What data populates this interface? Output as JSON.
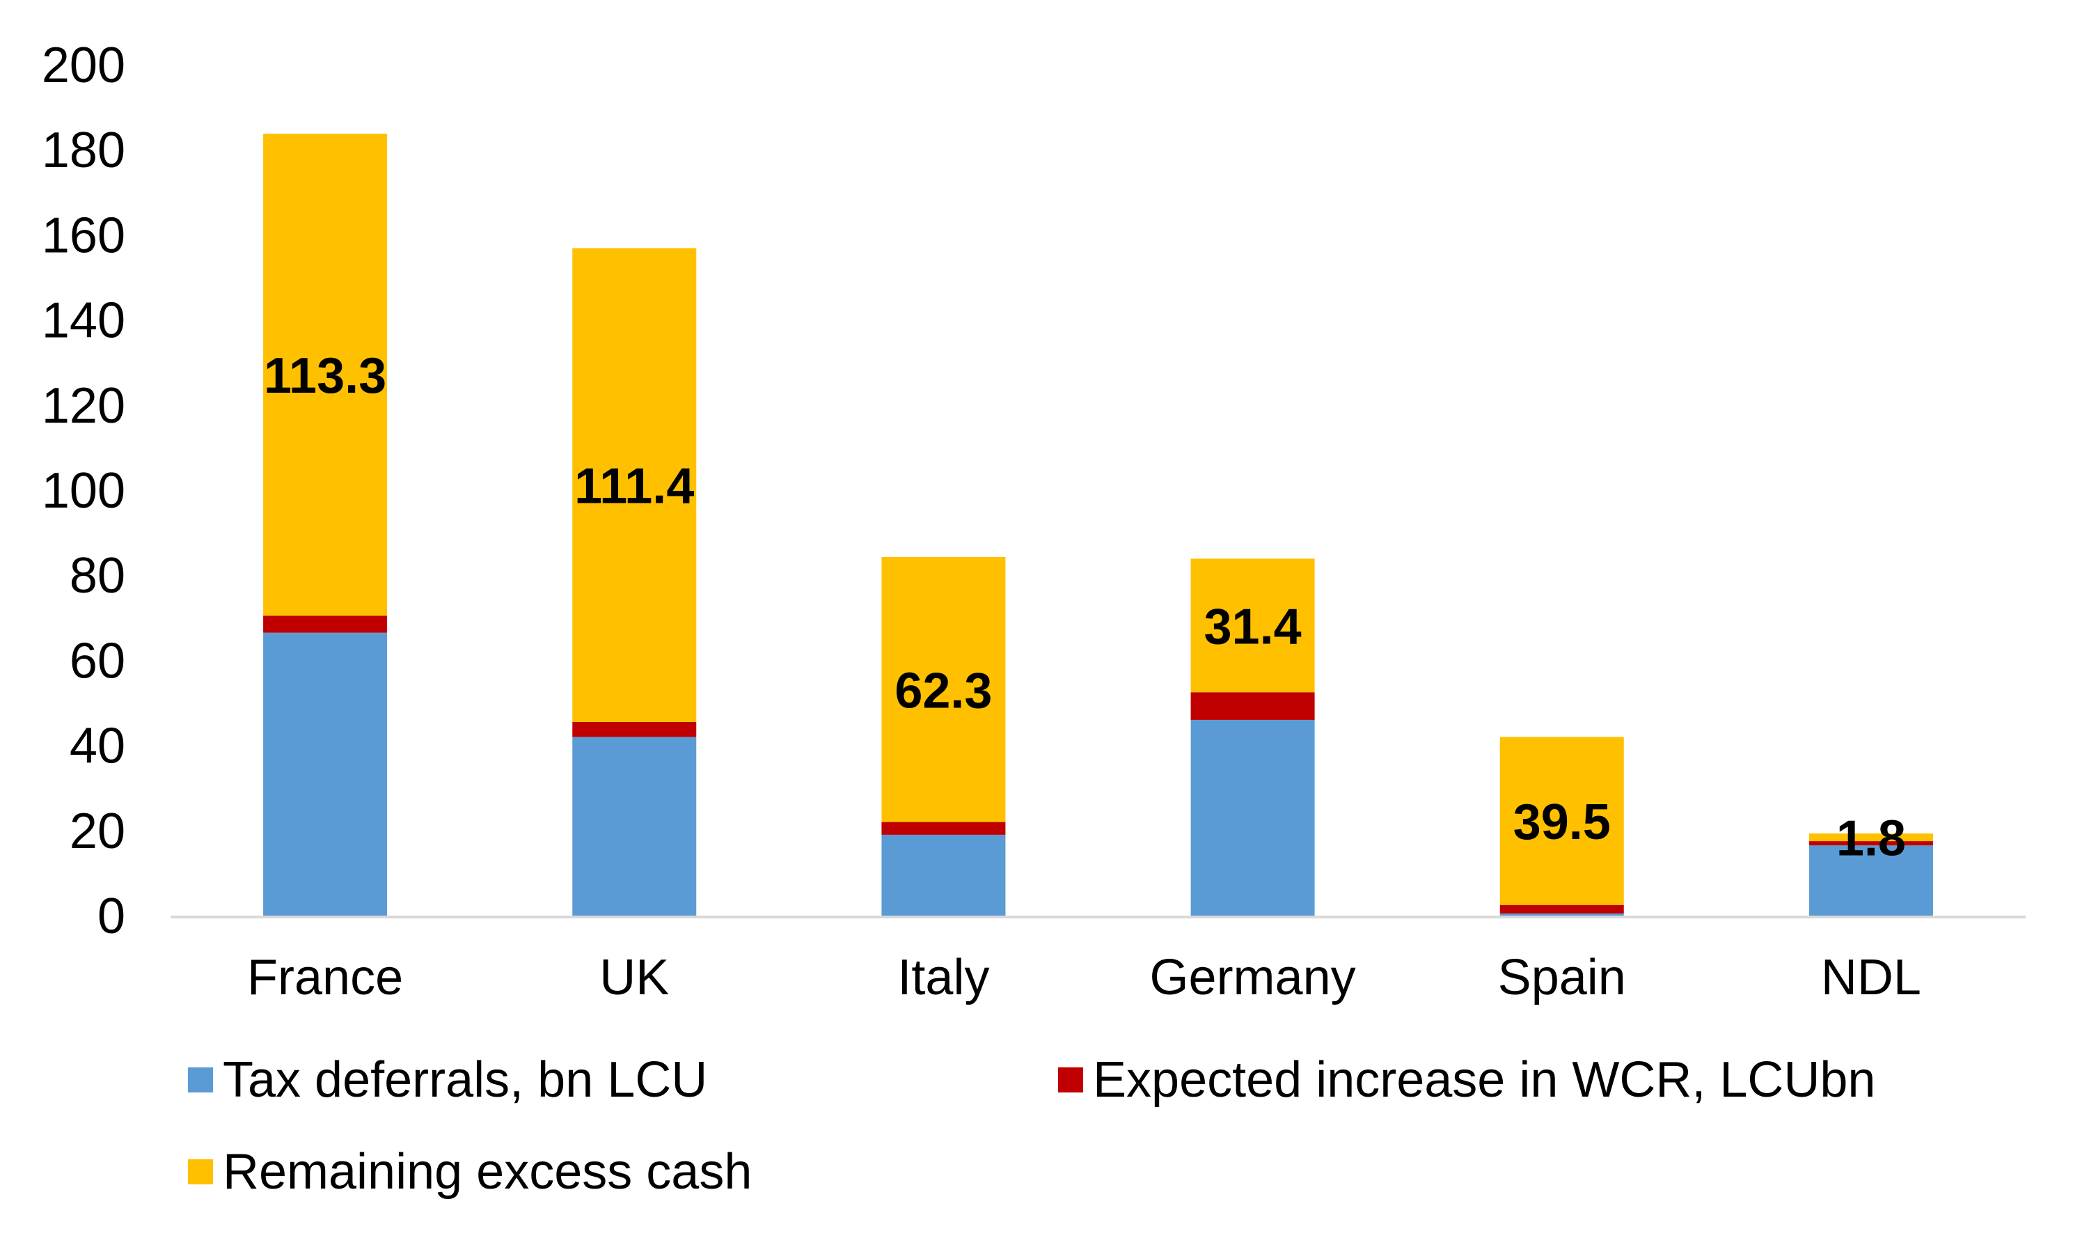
{
  "chart_data": {
    "type": "bar",
    "stacked": true,
    "title": "",
    "xlabel": "",
    "ylabel": "",
    "ylim": [
      0,
      200
    ],
    "yticks": [
      0,
      20,
      40,
      60,
      80,
      100,
      120,
      140,
      160,
      180,
      200
    ],
    "grid": false,
    "legend_position": "bottom",
    "categories": [
      "France",
      "UK",
      "Italy",
      "Germany",
      "Spain",
      "NDL"
    ],
    "series": [
      {
        "name": "Tax deferrals, bn LCU",
        "color": "#5B9BD5",
        "values": [
          66.5,
          42,
          19,
          46,
          0.5,
          16.5
        ]
      },
      {
        "name": "Expected increase in WCR, LCUbn",
        "color": "#C00000",
        "values": [
          4,
          3.5,
          3,
          6.5,
          2,
          1
        ]
      },
      {
        "name": "Remaining excess cash",
        "color": "#FFC000",
        "values": [
          113.3,
          111.4,
          62.3,
          31.4,
          39.5,
          1.8
        ]
      }
    ],
    "data_labels": [
      "113.3",
      "111.4",
      "62.3",
      "31.4",
      "39.5",
      "1.8"
    ],
    "data_label_series": "Remaining excess cash"
  }
}
